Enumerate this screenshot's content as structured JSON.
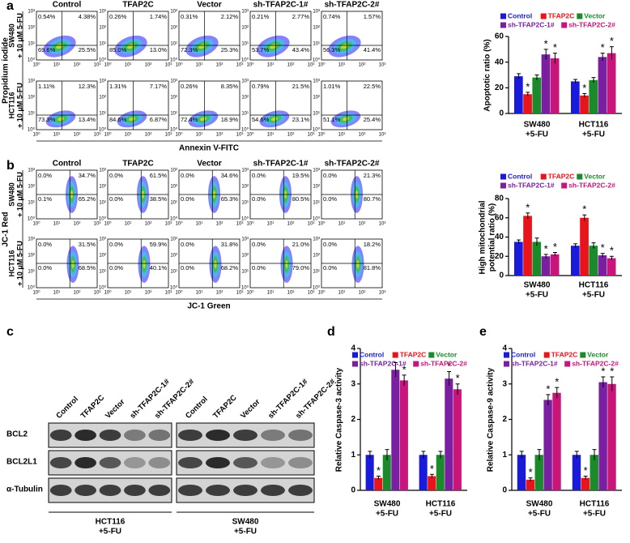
{
  "panels": [
    "a",
    "b",
    "c",
    "d",
    "e"
  ],
  "flow_a": {
    "columns": [
      "Control",
      "TFAP2C",
      "Vector",
      "sh-TFAP2C-1#",
      "sh-TFAP2C-2#"
    ],
    "y_label": "Propidium iodide",
    "x_label": "Annexin V-FITC",
    "ticks": [
      "10⁰",
      "10¹",
      "10²",
      "10³"
    ],
    "rows": [
      {
        "label": "SW480\n+ 10 μM 5-FU",
        "plots": [
          [
            "0.54%",
            "4.38%",
            "69.6%",
            "25.5%"
          ],
          [
            "0.26%",
            "1.74%",
            "85.0%",
            "13.0%"
          ],
          [
            "0.31%",
            "2.12%",
            "72.3%",
            "25.3%"
          ],
          [
            "0.21%",
            "2.77%",
            "53.7%",
            "43.4%"
          ],
          [
            "0.74%",
            "1.57%",
            "56.3%",
            "41.4%"
          ]
        ]
      },
      {
        "label": "HCT116\n+ 10 μM 5-FU",
        "plots": [
          [
            "1.11%",
            "12.3%",
            "73.3%",
            "13.4%"
          ],
          [
            "1.31%",
            "7.17%",
            "84.6%",
            "6.87%"
          ],
          [
            "0.26%",
            "8.35%",
            "72.4%",
            "18.9%"
          ],
          [
            "0.79%",
            "21.5%",
            "54.6%",
            "23.1%"
          ],
          [
            "1.01%",
            "22.5%",
            "51.1%",
            "25.4%"
          ]
        ]
      }
    ]
  },
  "flow_b": {
    "columns": [
      "Control",
      "TFAP2C",
      "Vector",
      "sh-TFAP2C-1#",
      "sh-TFAP2C-2#"
    ],
    "y_label": "JC-1 Red",
    "x_label": "JC-1 Green",
    "ticks": [
      "10⁰",
      "10¹",
      "10²",
      "10³"
    ],
    "rows": [
      {
        "label": "SW480\n+ 10 μM 5-FU",
        "plots": [
          [
            "0.0%",
            "34.7%",
            "0.1%",
            "65.2%"
          ],
          [
            "0.0%",
            "61.5%",
            "0.0%",
            "38.5%"
          ],
          [
            "0.0%",
            "34.6%",
            "0.0%",
            "65.3%"
          ],
          [
            "0.0%",
            "19.5%",
            "0.0%",
            "80.5%"
          ],
          [
            "0.0%",
            "21.3%",
            "0.0%",
            "80.7%"
          ]
        ]
      },
      {
        "label": "HCT116\n+ 10 μM 5-FU",
        "plots": [
          [
            "0.0%",
            "31.5%",
            "0.0%",
            "68.5%"
          ],
          [
            "0.0%",
            "59.9%",
            "0.0%",
            "40.1%"
          ],
          [
            "0.0%",
            "31.8%",
            "0.0%",
            "68.2%"
          ],
          [
            "0.0%",
            "21.0%",
            "0.0%",
            "79.0%"
          ],
          [
            "0.0%",
            "18.2%",
            "0.0%",
            "81.8%"
          ]
        ]
      }
    ]
  },
  "western": {
    "rows": [
      "BCL2",
      "BCL2L1",
      "α-Tubulin"
    ],
    "blocks": [
      {
        "lanes": [
          "Control",
          "TFAP2C",
          "Vector",
          "sh-TFAP2C-1#",
          "sh-TFAP2C-2#"
        ],
        "label": "HCT116\n+5-FU"
      },
      {
        "lanes": [
          "Control",
          "TFAP2C",
          "Vector",
          "sh-TFAP2C-1#",
          "sh-TFAP2C-2#"
        ],
        "label": "SW480\n+5-FU"
      }
    ]
  },
  "chart_data": [
    {
      "type": "bar",
      "y_label": "Apoptotic ratio (%)",
      "categories": [
        "SW480\n+5-FU",
        "HCT116\n+5-FU"
      ],
      "ylim": [
        0,
        60
      ],
      "yticks": [
        0,
        20,
        40,
        60
      ],
      "series": [
        {
          "name": "Control",
          "color": "#1a1adb",
          "values": [
            29,
            25
          ],
          "errors": [
            2,
            1.5
          ]
        },
        {
          "name": "TFAP2C",
          "color": "#e8141b",
          "values": [
            15,
            14
          ],
          "errors": [
            1.5,
            1.5
          ],
          "annotations": [
            "*",
            "*"
          ]
        },
        {
          "name": "Vector",
          "color": "#1a8a2a",
          "values": [
            28,
            26
          ],
          "errors": [
            2,
            2
          ]
        },
        {
          "name": "sh-TFAP2C-1#",
          "color": "#7a1fa2",
          "values": [
            46,
            44
          ],
          "errors": [
            4,
            3
          ],
          "annotations": [
            "*",
            "*"
          ]
        },
        {
          "name": "sh-TFAP2C-2#",
          "color": "#c8157a",
          "values": [
            43,
            47
          ],
          "errors": [
            4,
            5
          ],
          "annotations": [
            "*",
            "*"
          ]
        }
      ]
    },
    {
      "type": "bar",
      "y_label": "High mitochondrial\npotential ratio (%)",
      "categories": [
        "SW480\n+5-FU",
        "HCT116\n+5-FU"
      ],
      "ylim": [
        0,
        80
      ],
      "yticks": [
        0,
        20,
        40,
        60,
        80
      ],
      "series": [
        {
          "name": "Control",
          "color": "#1a1adb",
          "values": [
            35,
            31
          ],
          "errors": [
            2,
            2
          ]
        },
        {
          "name": "TFAP2C",
          "color": "#e8141b",
          "values": [
            62,
            60
          ],
          "errors": [
            3,
            3
          ],
          "annotations": [
            "*",
            "*"
          ]
        },
        {
          "name": "Vector",
          "color": "#1a8a2a",
          "values": [
            35,
            31
          ],
          "errors": [
            4,
            3
          ]
        },
        {
          "name": "sh-TFAP2C-1#",
          "color": "#7a1fa2",
          "values": [
            20,
            21
          ],
          "errors": [
            2,
            2
          ],
          "annotations": [
            "*",
            "*"
          ]
        },
        {
          "name": "sh-TFAP2C-2#",
          "color": "#c8157a",
          "values": [
            22,
            18
          ],
          "errors": [
            2,
            2
          ],
          "annotations": [
            "*",
            "*"
          ]
        }
      ]
    },
    {
      "type": "bar",
      "y_label": "Relative Caspase-3 activity",
      "categories": [
        "SW480\n+5-FU",
        "HCT116\n+5-FU"
      ],
      "ylim": [
        0,
        4
      ],
      "yticks": [
        0,
        1,
        2,
        3,
        4
      ],
      "series": [
        {
          "name": "Control",
          "color": "#1a1adb",
          "values": [
            1,
            1
          ],
          "errors": [
            0.1,
            0.1
          ]
        },
        {
          "name": "TFAP2C",
          "color": "#e8141b",
          "values": [
            0.35,
            0.4
          ],
          "errors": [
            0.05,
            0.05
          ],
          "annotations": [
            "*",
            "*"
          ]
        },
        {
          "name": "Vector",
          "color": "#1a8a2a",
          "values": [
            1,
            1
          ],
          "errors": [
            0.15,
            0.1
          ]
        },
        {
          "name": "sh-TFAP2C-1#",
          "color": "#7a1fa2",
          "values": [
            3.4,
            3.15
          ],
          "errors": [
            0.2,
            0.2
          ],
          "annotations": [
            "*",
            "*"
          ]
        },
        {
          "name": "sh-TFAP2C-2#",
          "color": "#c8157a",
          "values": [
            3.1,
            2.85
          ],
          "errors": [
            0.15,
            0.15
          ],
          "annotations": [
            "*",
            "*"
          ]
        }
      ]
    },
    {
      "type": "bar",
      "y_label": "Relative Caspase-9 activity",
      "categories": [
        "SW480\n+5-FU",
        "HCT116\n+5-FU"
      ],
      "ylim": [
        0,
        4
      ],
      "yticks": [
        0,
        1,
        2,
        3,
        4
      ],
      "series": [
        {
          "name": "Control",
          "color": "#1a1adb",
          "values": [
            1,
            1
          ],
          "errors": [
            0.1,
            0.1
          ]
        },
        {
          "name": "TFAP2C",
          "color": "#e8141b",
          "values": [
            0.3,
            0.35
          ],
          "errors": [
            0.05,
            0.05
          ],
          "annotations": [
            "*",
            "*"
          ]
        },
        {
          "name": "Vector",
          "color": "#1a8a2a",
          "values": [
            1,
            1
          ],
          "errors": [
            0.15,
            0.15
          ]
        },
        {
          "name": "sh-TFAP2C-1#",
          "color": "#7a1fa2",
          "values": [
            2.55,
            3.05
          ],
          "errors": [
            0.15,
            0.15
          ],
          "annotations": [
            "*",
            "*"
          ]
        },
        {
          "name": "sh-TFAP2C-2#",
          "color": "#c8157a",
          "values": [
            2.75,
            3.0
          ],
          "errors": [
            0.15,
            0.2
          ],
          "annotations": [
            "*",
            "*"
          ]
        }
      ]
    }
  ]
}
